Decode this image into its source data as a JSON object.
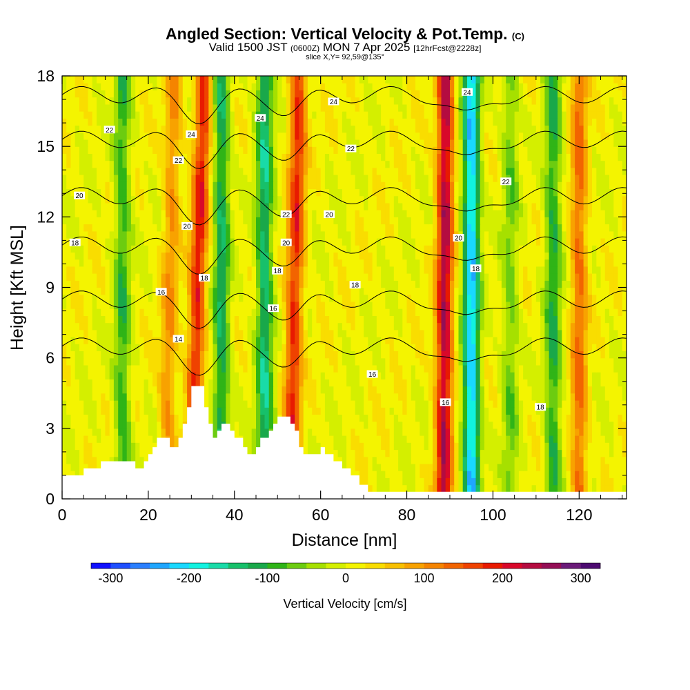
{
  "header": {
    "title": "Angled Section: Vertical Velocity & Pot.Temp.",
    "title_unit": "(C)",
    "subtitle_valid": "Valid 1500 JST",
    "subtitle_z": "(0600Z)",
    "subtitle_date": "MON 7 Apr 2025",
    "subtitle_fcst": "[12hrFcst@2228z]",
    "slice": "slice X,Y= 92,59@135°"
  },
  "chart_data": {
    "type": "heatmap",
    "title": "Angled Section: Vertical Velocity & Pot.Temp. (C)",
    "xlabel": "Distance [nm]",
    "ylabel": "Height [Kft MSL]",
    "xlim": [
      0,
      131
    ],
    "ylim": [
      0,
      18
    ],
    "xticks": [
      0,
      20,
      40,
      60,
      80,
      100,
      120
    ],
    "yticks": [
      0,
      3,
      6,
      9,
      12,
      15,
      18
    ],
    "updrafts": [
      {
        "x": 30,
        "x_top": 33,
        "strength": 180
      },
      {
        "x": 53,
        "x_top": 55,
        "strength": 170
      },
      {
        "x": 88.5,
        "x_top": 89,
        "strength": 230
      },
      {
        "x": 120,
        "x_top": 120,
        "strength": 120
      },
      {
        "x": 24,
        "x_top": 26,
        "strength": 90
      }
    ],
    "downdrafts": [
      {
        "x": 14,
        "strength": -100
      },
      {
        "x": 37,
        "strength": -130
      },
      {
        "x": 47,
        "strength": -150
      },
      {
        "x": 95,
        "strength": -230
      },
      {
        "x": 114,
        "strength": -110
      },
      {
        "x": 104,
        "strength": -70
      }
    ],
    "terrain_profile": [
      [
        0,
        1
      ],
      [
        5,
        1
      ],
      [
        5,
        1.3
      ],
      [
        9,
        1.3
      ],
      [
        9,
        1.6
      ],
      [
        17,
        1.6
      ],
      [
        17,
        1.3
      ],
      [
        19,
        1.3
      ],
      [
        19,
        1.6
      ],
      [
        20,
        1.6
      ],
      [
        20,
        1.9
      ],
      [
        21,
        1.9
      ],
      [
        21,
        2.2
      ],
      [
        22,
        2.2
      ],
      [
        22,
        2.6
      ],
      [
        25,
        2.6
      ],
      [
        25,
        2.2
      ],
      [
        27,
        2.2
      ],
      [
        27,
        2.6
      ],
      [
        28,
        2.6
      ],
      [
        28,
        3.2
      ],
      [
        29,
        3.2
      ],
      [
        29,
        3.9
      ],
      [
        30,
        3.9
      ],
      [
        30,
        4.8
      ],
      [
        33,
        4.8
      ],
      [
        33,
        3.9
      ],
      [
        34,
        3.9
      ],
      [
        34,
        3.2
      ],
      [
        35,
        3.2
      ],
      [
        35,
        2.6
      ],
      [
        36,
        2.6
      ],
      [
        36,
        2.9
      ],
      [
        37,
        2.9
      ],
      [
        37,
        3.2
      ],
      [
        39,
        3.2
      ],
      [
        39,
        2.9
      ],
      [
        40,
        2.9
      ],
      [
        40,
        2.6
      ],
      [
        42,
        2.6
      ],
      [
        42,
        2.2
      ],
      [
        43,
        2.2
      ],
      [
        43,
        1.9
      ],
      [
        45,
        1.9
      ],
      [
        45,
        2.2
      ],
      [
        46,
        2.2
      ],
      [
        46,
        2.6
      ],
      [
        48,
        2.6
      ],
      [
        48,
        2.9
      ],
      [
        49,
        2.9
      ],
      [
        49,
        3.2
      ],
      [
        50,
        3.2
      ],
      [
        50,
        3.5
      ],
      [
        53,
        3.5
      ],
      [
        53,
        3.2
      ],
      [
        54,
        3.2
      ],
      [
        54,
        2.9
      ],
      [
        55,
        2.9
      ],
      [
        55,
        2.2
      ],
      [
        56,
        2.2
      ],
      [
        56,
        1.9
      ],
      [
        60,
        1.9
      ],
      [
        60,
        2.2
      ],
      [
        61,
        2.2
      ],
      [
        61,
        1.9
      ],
      [
        63,
        1.9
      ],
      [
        63,
        1.6
      ],
      [
        65,
        1.6
      ],
      [
        65,
        1.3
      ],
      [
        67,
        1.3
      ],
      [
        67,
        1.0
      ],
      [
        69,
        1.0
      ],
      [
        69,
        0.6
      ],
      [
        71,
        0.6
      ],
      [
        71,
        0.3
      ],
      [
        131,
        0.3
      ]
    ],
    "theta_contours": [
      {
        "label": "14",
        "base_y": 6.5
      },
      {
        "label": "16",
        "base_y": 8.5
      },
      {
        "label": "18",
        "base_y": 10.8
      },
      {
        "label": "20",
        "base_y": 12.9
      },
      {
        "label": "22",
        "base_y": 15.3
      },
      {
        "label": "24",
        "base_y": 17.2
      }
    ],
    "contour_labels": [
      {
        "text": "22",
        "x": 11,
        "y": 15.7
      },
      {
        "text": "20",
        "x": 4,
        "y": 12.9
      },
      {
        "text": "18",
        "x": 3,
        "y": 10.9
      },
      {
        "text": "16",
        "x": 23,
        "y": 8.8
      },
      {
        "text": "14",
        "x": 27,
        "y": 6.8
      },
      {
        "text": "24",
        "x": 30,
        "y": 15.5
      },
      {
        "text": "22",
        "x": 27,
        "y": 14.4
      },
      {
        "text": "20",
        "x": 29,
        "y": 11.6
      },
      {
        "text": "18",
        "x": 33,
        "y": 9.4
      },
      {
        "text": "24",
        "x": 46,
        "y": 16.2
      },
      {
        "text": "22",
        "x": 52,
        "y": 12.1
      },
      {
        "text": "20",
        "x": 52,
        "y": 10.9
      },
      {
        "text": "18",
        "x": 50,
        "y": 9.7
      },
      {
        "text": "16",
        "x": 49,
        "y": 8.1
      },
      {
        "text": "24",
        "x": 63,
        "y": 16.9
      },
      {
        "text": "22",
        "x": 67,
        "y": 14.9
      },
      {
        "text": "20",
        "x": 62,
        "y": 12.1
      },
      {
        "text": "18",
        "x": 68,
        "y": 9.1
      },
      {
        "text": "16",
        "x": 72,
        "y": 5.3
      },
      {
        "text": "24",
        "x": 94,
        "y": 17.3
      },
      {
        "text": "22",
        "x": 103,
        "y": 13.5
      },
      {
        "text": "20",
        "x": 92,
        "y": 11.1
      },
      {
        "text": "18",
        "x": 96,
        "y": 9.8
      },
      {
        "text": "16",
        "x": 89,
        "y": 4.1
      },
      {
        "text": "18",
        "x": 111,
        "y": 3.9
      }
    ],
    "colorbar": {
      "label": "Vertical Velocity [cm/s]",
      "ticks": [
        -300,
        -200,
        -100,
        0,
        100,
        200,
        300
      ],
      "tick_labels": [
        "-300",
        "-200",
        "-100",
        "0",
        "100",
        "200",
        "300"
      ],
      "range": [
        -325,
        325
      ],
      "colors": [
        "#1010ff",
        "#1f4fff",
        "#2a7fff",
        "#1fa6ff",
        "#19d8ff",
        "#11f2e0",
        "#19dba8",
        "#17c06a",
        "#19a84a",
        "#2fb417",
        "#6ccc10",
        "#a6e000",
        "#d4ef00",
        "#f4f400",
        "#f9dd00",
        "#f8c000",
        "#f8a200",
        "#f58400",
        "#f26400",
        "#ef4200",
        "#e81a00",
        "#d8082a",
        "#b40c40",
        "#930e55",
        "#6a1a78",
        "#4c0a70"
      ]
    }
  }
}
